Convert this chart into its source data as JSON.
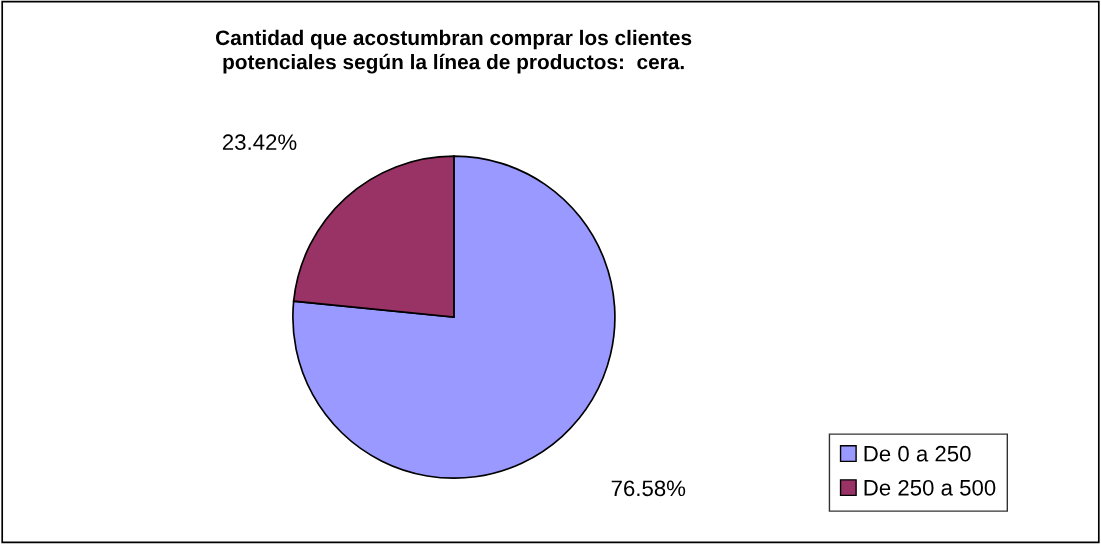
{
  "chart_data": {
    "type": "pie",
    "title": "Cantidad que acostumbran comprar los clientes\npotenciales según la línea de productos:  cera.",
    "categories": [
      "De 0 a 250",
      "De 250 a 500"
    ],
    "values": [
      76.58,
      23.42
    ],
    "colors": [
      "#9999ff",
      "#993366"
    ],
    "value_labels": [
      "76.58%",
      "23.42%"
    ],
    "legend": "bottom right"
  }
}
